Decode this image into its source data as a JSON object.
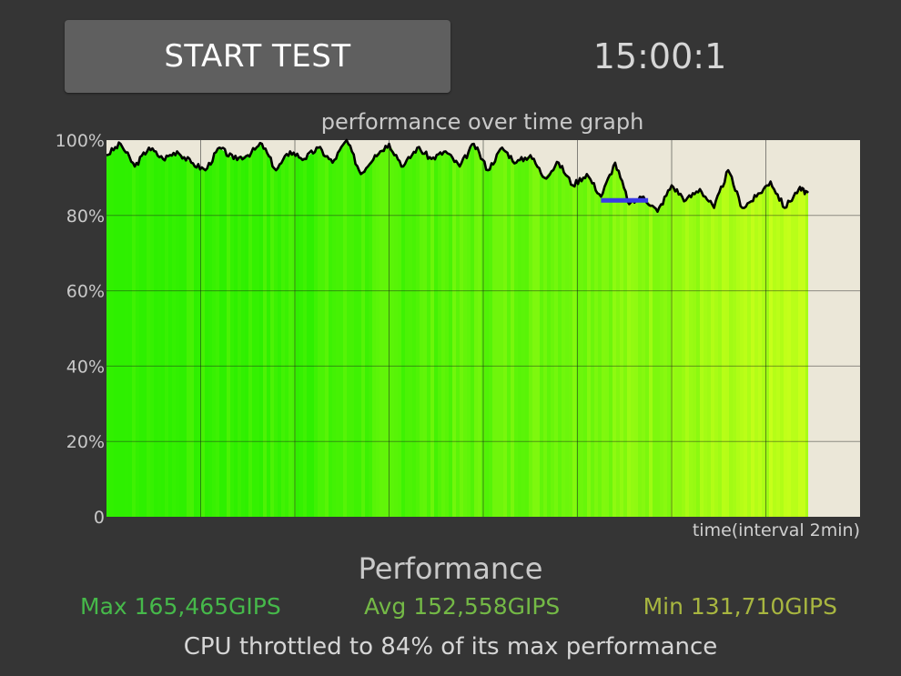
{
  "controls": {
    "start_label": "START TEST",
    "timer": "15:00:1"
  },
  "chart_data": {
    "type": "area",
    "title": "performance over time graph",
    "xlabel": "time(interval 2min)",
    "ylabel": "",
    "y_tick_labels": [
      "100%",
      "80%",
      "60%",
      "40%",
      "20%",
      "0"
    ],
    "ylim": [
      0,
      100
    ],
    "x_major_intervals": 8,
    "x_domain_minutes": [
      0,
      16
    ],
    "x_filled_until_minutes": 14.9,
    "series": [
      {
        "name": "",
        "x_minutes": [
          0,
          0.3,
          0.6,
          0.9,
          1.2,
          1.5,
          1.8,
          2.1,
          2.4,
          2.7,
          3.0,
          3.3,
          3.6,
          3.9,
          4.2,
          4.5,
          4.8,
          5.1,
          5.4,
          5.7,
          6.0,
          6.3,
          6.6,
          6.9,
          7.2,
          7.5,
          7.8,
          8.1,
          8.4,
          8.7,
          9.0,
          9.3,
          9.6,
          9.9,
          10.2,
          10.5,
          10.8,
          11.1,
          11.4,
          11.7,
          12.0,
          12.3,
          12.6,
          12.9,
          13.2,
          13.5,
          13.8,
          14.1,
          14.4,
          14.7,
          14.9
        ],
        "values": [
          96,
          99,
          93,
          98,
          95,
          97,
          94,
          92,
          98,
          95,
          96,
          99,
          92,
          97,
          95,
          98,
          94,
          100,
          91,
          96,
          99,
          93,
          98,
          95,
          97,
          93,
          99,
          92,
          98,
          94,
          96,
          90,
          94,
          88,
          91,
          85,
          94,
          83,
          85,
          81,
          88,
          84,
          87,
          82,
          92,
          82,
          85,
          89,
          82,
          87,
          86
        ]
      }
    ],
    "reference_line": {
      "value": 84,
      "x_start_minutes": 10.5,
      "x_end_minutes": 11.5,
      "color": "#3a3ae8"
    },
    "colors": {
      "plot_bg": "#ebe7d8",
      "line": "#000000",
      "fill_high": "#2ef000",
      "fill_low": "#c6ff1a",
      "grid": "#1a1a1a"
    },
    "grid": true
  },
  "performance": {
    "title": "Performance",
    "max": "Max 165,465GIPS",
    "avg": "Avg 152,558GIPS",
    "min": "Min 131,710GIPS",
    "throttle": "CPU throttled to 84% of its max performance"
  }
}
